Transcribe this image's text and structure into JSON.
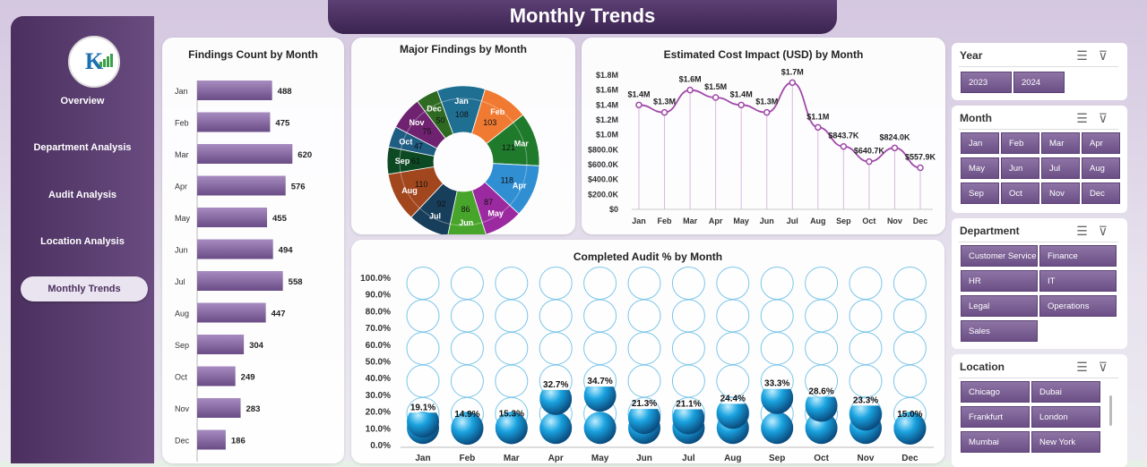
{
  "page": {
    "title": "Monthly Trends"
  },
  "sidebar": {
    "items": [
      {
        "label": "Overview",
        "active": false
      },
      {
        "label": "Department Analysis",
        "active": false
      },
      {
        "label": "Audit Analysis",
        "active": false
      },
      {
        "label": "Location Analysis",
        "active": false
      },
      {
        "label": "Monthly Trends",
        "active": true
      }
    ]
  },
  "slicers": {
    "year": {
      "title": "Year",
      "options": [
        "2023",
        "2024"
      ]
    },
    "month": {
      "title": "Month",
      "options": [
        "Jan",
        "Feb",
        "Mar",
        "Apr",
        "May",
        "Jun",
        "Jul",
        "Aug",
        "Sep",
        "Oct",
        "Nov",
        "Dec"
      ]
    },
    "department": {
      "title": "Department",
      "options": [
        "Customer Service",
        "Finance",
        "HR",
        "IT",
        "Legal",
        "Operations",
        "Sales"
      ]
    },
    "location": {
      "title": "Location",
      "options": [
        "Chicago",
        "Dubai",
        "Frankfurt",
        "London",
        "Mumbai",
        "New York"
      ]
    }
  },
  "chart_data": [
    {
      "type": "bar",
      "title": "Findings Count by Month",
      "categories": [
        "Jan",
        "Feb",
        "Mar",
        "Apr",
        "May",
        "Jun",
        "Jul",
        "Aug",
        "Sep",
        "Oct",
        "Nov",
        "Dec"
      ],
      "values": [
        488,
        475,
        620,
        576,
        455,
        494,
        558,
        447,
        304,
        249,
        283,
        186
      ],
      "color": "#7b5a98"
    },
    {
      "type": "pie",
      "title": "Major Findings by Month",
      "categories": [
        "Jan",
        "Feb",
        "Mar",
        "Apr",
        "May",
        "Jun",
        "Jul",
        "Aug",
        "Sep",
        "Oct",
        "Nov",
        "Dec"
      ],
      "values": [
        108,
        103,
        121,
        118,
        87,
        86,
        92,
        110,
        61,
        47,
        75,
        50
      ],
      "colors": [
        "#1f6f93",
        "#f07a31",
        "#1f7a2c",
        "#2f8fd2",
        "#9b2aa0",
        "#48a52b",
        "#173e5a",
        "#a2461e",
        "#0d4a24",
        "#205d83",
        "#6e2270",
        "#2e6a22"
      ]
    },
    {
      "type": "line",
      "title": "Estimated Cost Impact (USD) by Month",
      "categories": [
        "Jan",
        "Feb",
        "Mar",
        "Apr",
        "May",
        "Jun",
        "Jul",
        "Aug",
        "Sep",
        "Oct",
        "Nov",
        "Dec"
      ],
      "values": [
        1.4,
        1.3,
        1.6,
        1.5,
        1.4,
        1.3,
        1.7,
        1.1,
        0.8436,
        0.6407,
        0.824,
        0.5579
      ],
      "labels": [
        "$1.4M",
        "$1.3M",
        "$1.6M",
        "$1.5M",
        "$1.4M",
        "$1.3M",
        "$1.7M",
        "$1.1M",
        "$843.7K",
        "$640.7K",
        "$824.0K",
        "$557.9K"
      ],
      "yticks": [
        "$0",
        "$200.0K",
        "$400.0K",
        "$600.0K",
        "$800.0K",
        "$1.0M",
        "$1.2M",
        "$1.4M",
        "$1.6M",
        "$1.8M"
      ],
      "ylim": [
        0,
        1.8
      ],
      "color": "#a04aa8"
    },
    {
      "type": "bar",
      "title": "Completed Audit % by Month",
      "categories": [
        "Jan",
        "Feb",
        "Mar",
        "Apr",
        "May",
        "Jun",
        "Jul",
        "Aug",
        "Sep",
        "Oct",
        "Nov",
        "Dec"
      ],
      "values": [
        19.1,
        14.9,
        15.3,
        32.7,
        34.7,
        21.3,
        21.1,
        24.4,
        33.3,
        28.6,
        23.3,
        15.0
      ],
      "labels": [
        "19.1%",
        "14.9%",
        "15.3%",
        "32.7%",
        "34.7%",
        "21.3%",
        "21.1%",
        "24.4%",
        "33.3%",
        "28.6%",
        "23.3%",
        "15.0%"
      ],
      "yticks": [
        "0.0%",
        "10.0%",
        "20.0%",
        "30.0%",
        "40.0%",
        "50.0%",
        "60.0%",
        "70.0%",
        "80.0%",
        "90.0%",
        "100.0%"
      ],
      "ylim": [
        0,
        100
      ],
      "color": "#1aa3e0"
    }
  ]
}
